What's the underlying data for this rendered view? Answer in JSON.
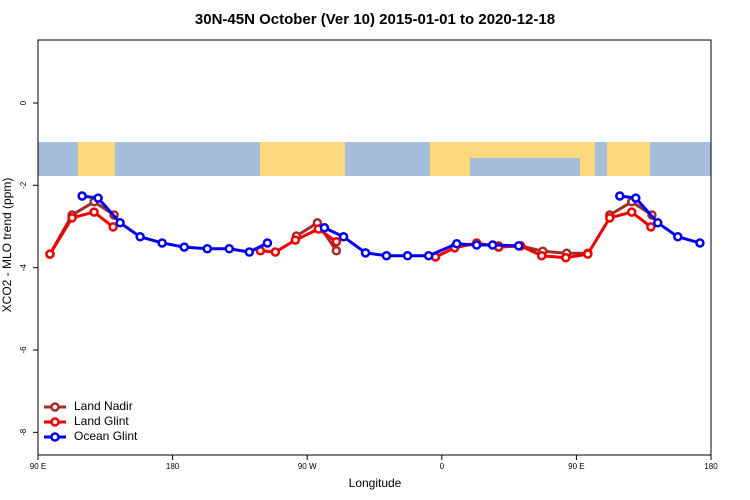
{
  "chart_data": {
    "type": "line",
    "title": "30N-45N October (Ver 10)   2015-01-01 to 2020-12-18",
    "x_label": "Longitude",
    "y_label": "XCO2 - MLO trend (ppm)",
    "xlim": [
      90,
      540
    ],
    "ylim": [
      -8.55,
      1.53
    ],
    "xticks": [
      {
        "value": 90,
        "label": "90 E"
      },
      180,
      {
        "value": 270,
        "label": "90 W"
      },
      {
        "value": 360,
        "label": "0"
      },
      {
        "value": 450,
        "label": "90 E"
      },
      {
        "value": 540,
        "label": "180"
      }
    ],
    "yticks": [
      0,
      -2,
      -4,
      -6,
      -8
    ],
    "legend": "bottom-left",
    "series": [
      {
        "name": "Land Nadir",
        "color": "#a52a2a",
        "x": [
          98.0,
          112.8,
          127.5,
          140.9,
          null,
          262.8,
          276.8,
          289.5,
          null,
          368.6,
          383.3,
          398.0,
          412.7,
          427.5,
          443.5,
          457.6,
          null,
          472.3,
          487.0,
          500.5
        ],
        "values": [
          -3.67,
          -2.72,
          -2.4,
          -2.72,
          null,
          -3.23,
          -2.91,
          -3.59,
          null,
          -3.5,
          -3.42,
          -3.47,
          -3.47,
          -3.6,
          -3.65,
          -3.65,
          null,
          -2.72,
          -2.4,
          -2.72
        ]
      },
      {
        "name": "Land Glint",
        "color": "#ee0000",
        "x": [
          98.0,
          112.8,
          127.5,
          140.2,
          null,
          238.7,
          248.7,
          262.1,
          277.5,
          289.5,
          null,
          355.8,
          368.6,
          383.3,
          398.0,
          412.7,
          426.8,
          442.9,
          457.6,
          472.3,
          487.0,
          499.8
        ],
        "values": [
          -3.67,
          -2.79,
          -2.65,
          -3.01,
          null,
          -3.59,
          -3.62,
          -3.33,
          -3.06,
          -3.37,
          null,
          -3.74,
          -3.52,
          -3.4,
          -3.5,
          -3.47,
          -3.71,
          -3.76,
          -3.67,
          -2.79,
          -2.65,
          -3.01
        ]
      },
      {
        "name": "Ocean Glint",
        "color": "#0000ee",
        "x": [
          119.5,
          130.2,
          144.9,
          158.3,
          173.0,
          187.8,
          203.2,
          217.9,
          231.3,
          243.4,
          null,
          281.5,
          294.3,
          309.0,
          323.0,
          337.1,
          351.2,
          370.0,
          383.3,
          394.0,
          411.4,
          null,
          479.0,
          489.7,
          504.4,
          517.8,
          532.6
        ],
        "values": [
          -2.26,
          -2.31,
          -2.91,
          -3.25,
          -3.4,
          -3.5,
          -3.54,
          -3.54,
          -3.62,
          -3.4,
          null,
          -3.03,
          -3.25,
          -3.64,
          -3.71,
          -3.71,
          -3.71,
          -3.42,
          -3.45,
          -3.45,
          -3.47,
          null,
          -2.26,
          -2.31,
          -2.91,
          -3.25,
          -3.4
        ]
      }
    ]
  }
}
